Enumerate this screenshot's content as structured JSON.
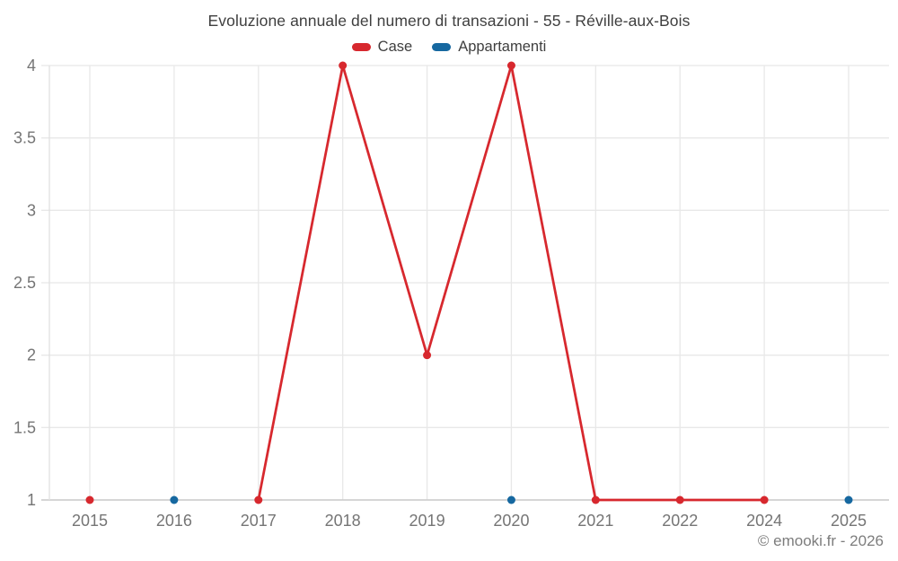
{
  "chart_data": {
    "type": "line",
    "title": "Evoluzione annuale del numero di transazioni - 55 - Réville-aux-Bois",
    "categories": [
      "2015",
      "2016",
      "2017",
      "2018",
      "2019",
      "2020",
      "2021",
      "2022",
      "2024",
      "2025"
    ],
    "series": [
      {
        "name": "Case",
        "color": "#d7282e",
        "values": [
          1,
          null,
          1,
          4,
          2,
          4,
          1,
          1,
          1,
          null
        ]
      },
      {
        "name": "Appartamenti",
        "color": "#1668a0",
        "values": [
          null,
          1,
          null,
          null,
          null,
          1,
          null,
          null,
          null,
          1
        ]
      }
    ],
    "ylim": [
      1,
      4
    ],
    "yticks": [
      1,
      1.5,
      2,
      2.5,
      3,
      3.5,
      4
    ],
    "xlabel": "",
    "ylabel": "",
    "grid": true,
    "legend_position": "top",
    "grid_color": "#e8e8e8",
    "axis_line_color": "#c9c9c9",
    "side_axis_color": "#e0e0e0",
    "tick_label_color": "#757575"
  },
  "footer": {
    "copyright": "© emooki.fr - 2026"
  }
}
